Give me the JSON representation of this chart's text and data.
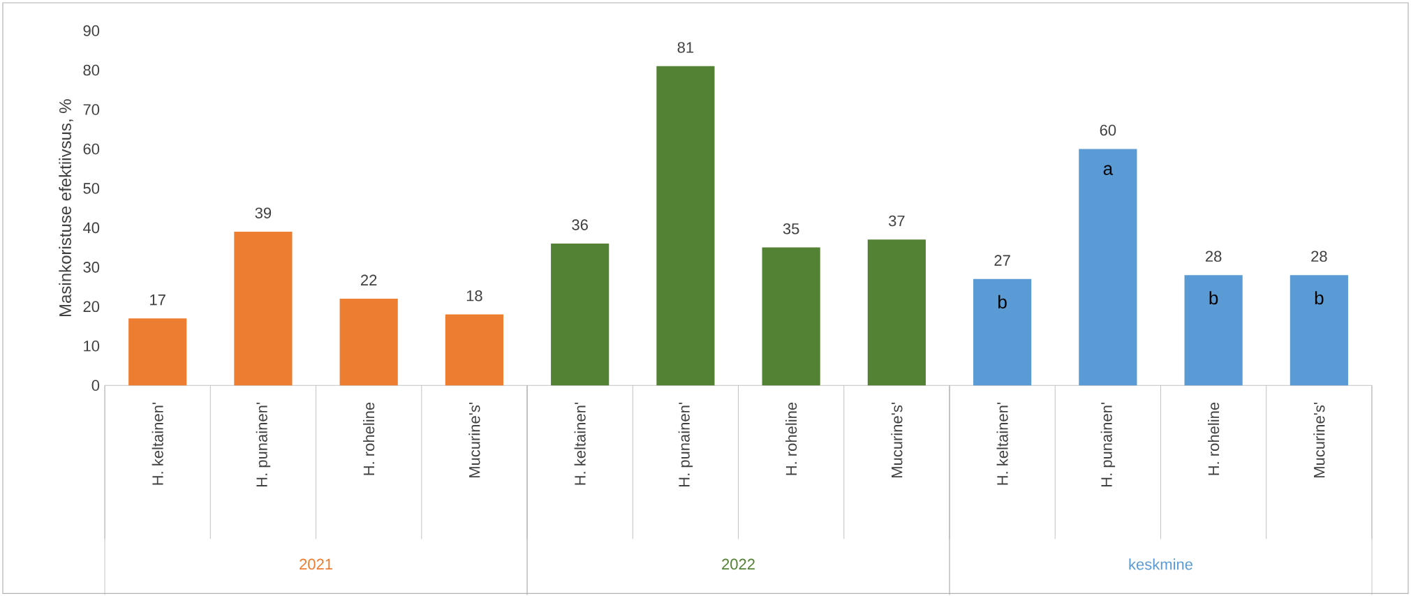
{
  "chart_data": {
    "type": "bar",
    "ylabel": "Masinkoristuse efektiivsus, %",
    "categories": [
      "H. keltainen'",
      "H. punainen'",
      "H. roheline",
      "Mucurine's'",
      "H. keltainen'",
      "H. punainen'",
      "H. roheline",
      "Mucurine's'",
      "H. keltainen'",
      "H. punainen'",
      "H. roheline",
      "Mucurine's'"
    ],
    "series": [
      {
        "name": "2021",
        "color": "#ed7d31",
        "values": [
          17,
          39,
          22,
          18,
          null,
          null,
          null,
          null,
          null,
          null,
          null,
          null
        ]
      },
      {
        "name": "2022",
        "color": "#548235",
        "values": [
          null,
          null,
          null,
          null,
          36,
          81,
          35,
          37,
          null,
          null,
          null,
          null
        ]
      },
      {
        "name": "keskmine",
        "color": "#5b9bd5",
        "values": [
          null,
          null,
          null,
          null,
          null,
          null,
          null,
          null,
          27,
          60,
          28,
          28
        ]
      }
    ],
    "ylim": [
      0,
      90
    ],
    "yticks": [
      0,
      10,
      20,
      30,
      40,
      50,
      60,
      70,
      80,
      90
    ],
    "data_labels": true,
    "grid": false,
    "annotations": [
      "b",
      "a",
      "b",
      "b"
    ]
  }
}
